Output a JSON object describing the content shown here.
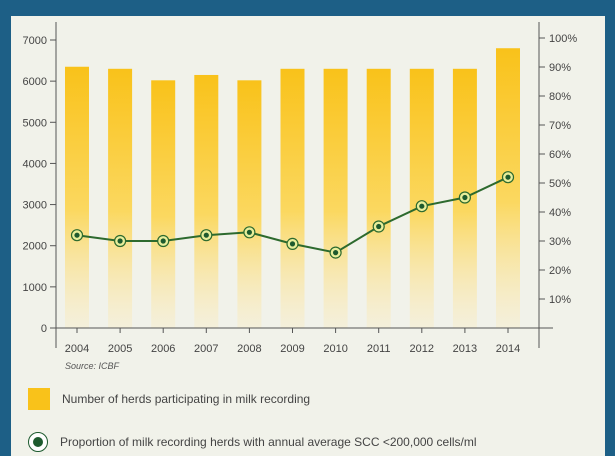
{
  "chart_data": {
    "type": "bar+line",
    "categories": [
      "2004",
      "2005",
      "2006",
      "2007",
      "2008",
      "2009",
      "2010",
      "2011",
      "2012",
      "2013",
      "2014"
    ],
    "series": [
      {
        "name": "Number of herds participating in milk recording",
        "type": "bar",
        "axis": "left",
        "values": [
          6350,
          6300,
          6020,
          6150,
          6020,
          6300,
          6300,
          6300,
          6300,
          6300,
          6800
        ],
        "color": "#f9c21a"
      },
      {
        "name": "Proportion of milk recording herds with annual average SCC <200,000 cells/ml",
        "type": "line",
        "axis": "right",
        "values": [
          32,
          30,
          30,
          32,
          33,
          29,
          26,
          35,
          42,
          45,
          52
        ],
        "color": "#2d6a2e"
      }
    ],
    "y_left": {
      "ticks": [
        0,
        1000,
        2000,
        3000,
        4000,
        5000,
        6000,
        7000
      ],
      "ylim": [
        0,
        7000
      ]
    },
    "y_right": {
      "ticks": [
        "10%",
        "20%",
        "30%",
        "40%",
        "50%",
        "60%",
        "70%",
        "80%",
        "90%",
        "100%"
      ],
      "ylim": [
        0,
        100
      ]
    },
    "source": "Source: ICBF",
    "grid": false,
    "legend_position": "bottom"
  }
}
